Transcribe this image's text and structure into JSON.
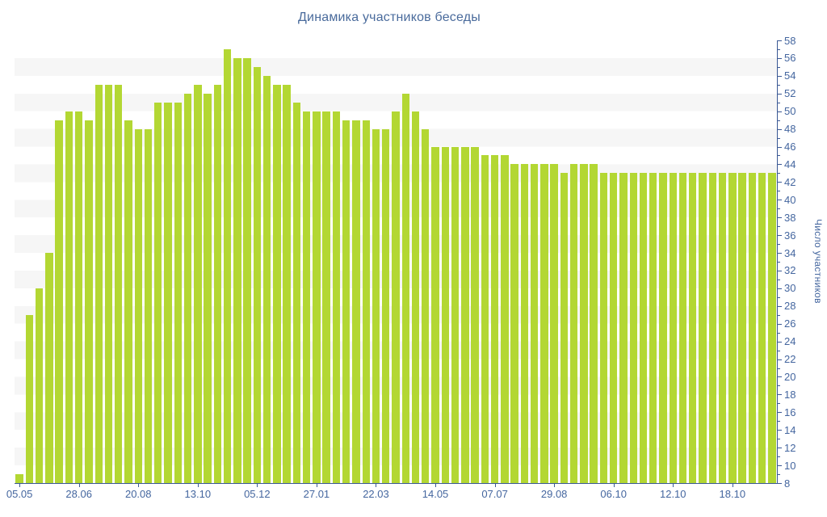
{
  "chart_data": {
    "type": "bar",
    "title": "Динамика участников беседы",
    "ylabel": "Число участников",
    "xlabel": "",
    "ylim": [
      8,
      58
    ],
    "y_tick_step": 2,
    "y_minor_tick_step": 1,
    "grid": "horizontal striped bands, 2-unit alternation",
    "legend": "none",
    "axis_side": "right",
    "x_tick_interval": 6,
    "x_labels": [
      "05.05",
      "28.06",
      "20.08",
      "13.10",
      "05.12",
      "27.01",
      "22.03",
      "14.05",
      "07.07",
      "29.08",
      "06.10",
      "12.10",
      "18.10"
    ],
    "values": [
      9,
      27,
      30,
      34,
      49,
      50,
      50,
      49,
      53,
      53,
      53,
      49,
      48,
      48,
      51,
      51,
      51,
      52,
      53,
      52,
      53,
      57,
      56,
      56,
      55,
      54,
      53,
      53,
      51,
      50,
      50,
      50,
      50,
      49,
      49,
      49,
      48,
      48,
      50,
      52,
      50,
      48,
      46,
      46,
      46,
      46,
      46,
      45,
      45,
      45,
      44,
      44,
      44,
      44,
      44,
      43,
      44,
      44,
      44,
      43,
      43,
      43,
      43,
      43,
      43,
      43,
      43,
      43,
      43,
      43,
      43,
      43,
      43,
      43,
      43,
      43,
      43
    ],
    "colors": {
      "bar": "#b3d733",
      "axis": "#3a5894",
      "label": "#44669f",
      "title": "#4a6b9c",
      "band": "#f6f6f6",
      "background": "#ffffff"
    }
  }
}
